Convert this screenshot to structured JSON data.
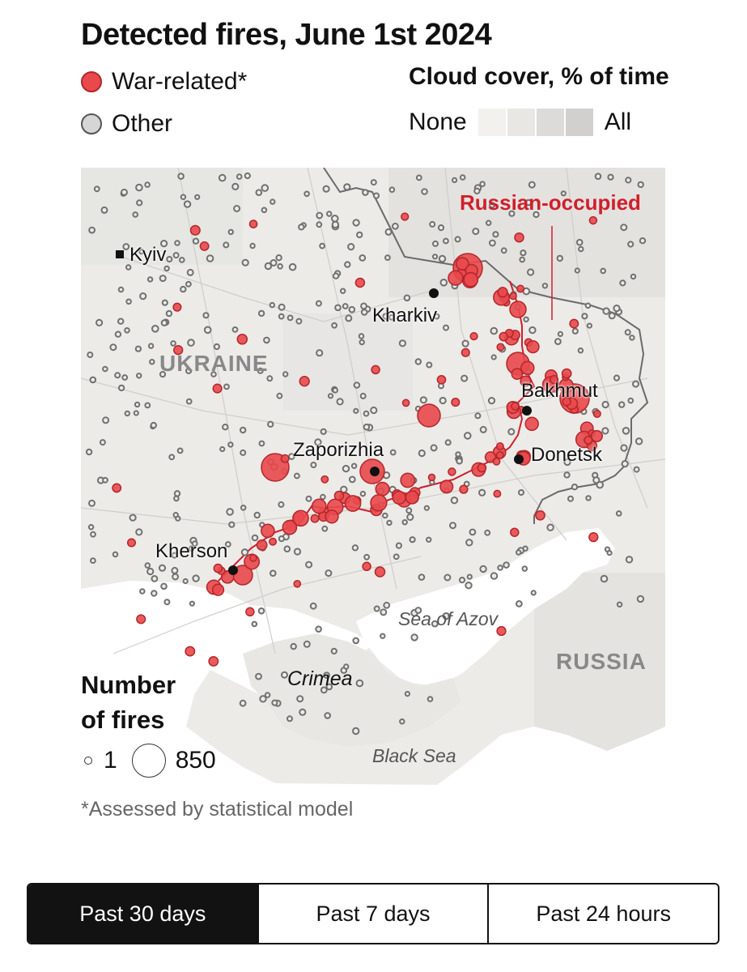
{
  "title": "Detected fires, June 1st 2024",
  "legend": {
    "war_related": "War-related*",
    "other": "Other",
    "colors": {
      "war": "#e9494c",
      "other": "#d6d6d6"
    }
  },
  "cloud_cover": {
    "title": "Cloud cover, % of time",
    "min_label": "None",
    "max_label": "All",
    "swatches": [
      "#f2f1ee",
      "#e8e7e4",
      "#dcdbd9",
      "#d1d0ce"
    ]
  },
  "map": {
    "labels": {
      "occupied": "Russian-occupied",
      "kyiv": "Kyiv",
      "kharkiv": "Kharkiv",
      "ukraine": "UKRAINE",
      "bakhmut": "Bakhmut",
      "zaporizhia": "Zaporizhia",
      "donetsk": "Donetsk",
      "kherson": "Kherson",
      "sea_of_azov": "Sea of Azov",
      "russia": "RUSSIA",
      "crimea": "Crimea",
      "black_sea": "Black Sea"
    }
  },
  "size_legend": {
    "title_line1": "Number",
    "title_line2": "of fires",
    "small_value": "1",
    "large_value": "850"
  },
  "footnote": "*Assessed by statistical model",
  "tabs": [
    {
      "label": "Past 30 days",
      "active": true
    },
    {
      "label": "Past 7 days",
      "active": false
    },
    {
      "label": "Past 24 hours",
      "active": false
    }
  ]
}
